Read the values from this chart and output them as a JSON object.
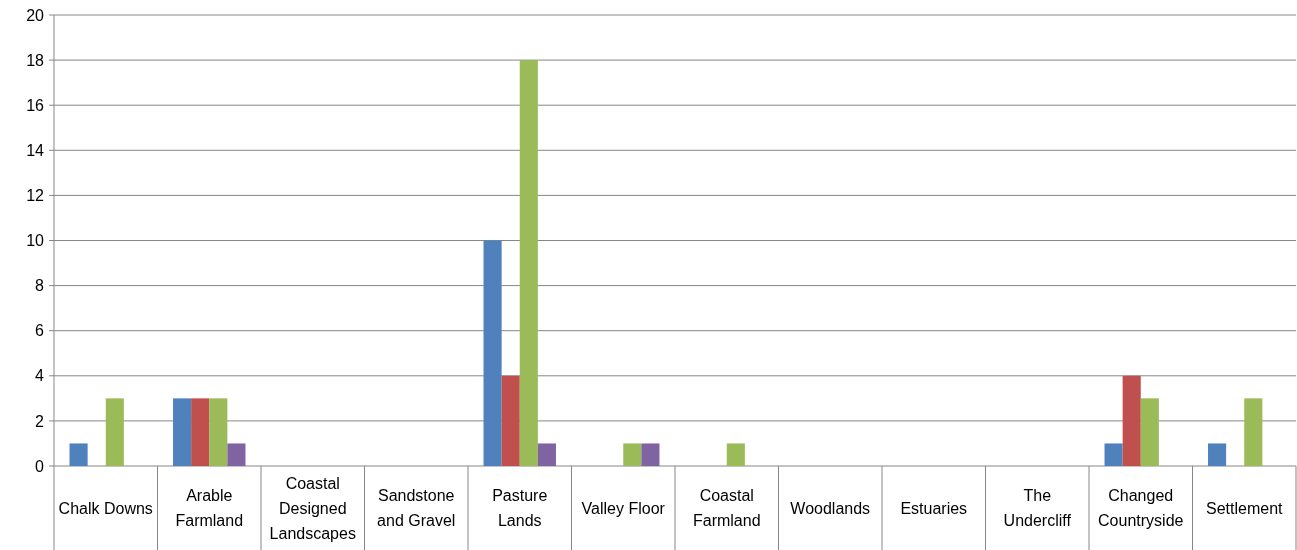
{
  "chart_data": {
    "type": "bar",
    "categories": [
      "Chalk Downs",
      "Arable Farmland",
      "Coastal Designed Landscapes",
      "Sandstone and Gravel",
      "Pasture Lands",
      "Valley Floor",
      "Coastal Farmland",
      "Woodlands",
      "Estuaries",
      "The Undercliff",
      "Changed Countryside",
      "Settlement"
    ],
    "series": [
      {
        "color": "#4f81bd",
        "values": [
          1,
          3,
          0,
          0,
          10,
          0,
          0,
          0,
          0,
          0,
          1,
          1
        ]
      },
      {
        "color": "#c0504d",
        "values": [
          0,
          3,
          0,
          0,
          4,
          0,
          0,
          0,
          0,
          0,
          4,
          0
        ]
      },
      {
        "color": "#9bbb59",
        "values": [
          3,
          3,
          0,
          0,
          18,
          1,
          1,
          0,
          0,
          0,
          3,
          3
        ]
      },
      {
        "color": "#8064a2",
        "values": [
          0,
          1,
          0,
          0,
          1,
          1,
          0,
          0,
          0,
          0,
          0,
          0
        ]
      }
    ],
    "ylim": [
      0,
      20
    ],
    "yticks": [
      0,
      2,
      4,
      6,
      8,
      10,
      12,
      14,
      16,
      18,
      20
    ],
    "grid": "y"
  }
}
